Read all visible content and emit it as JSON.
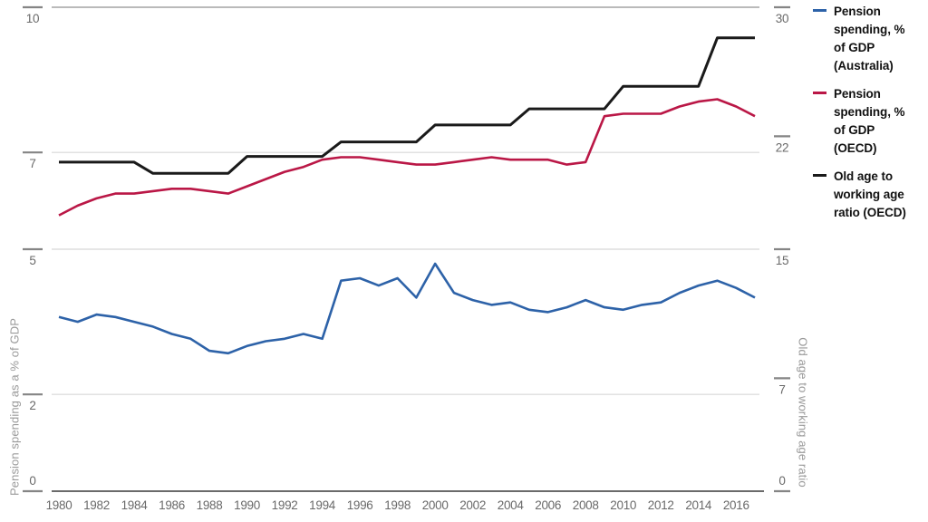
{
  "chart_data": {
    "type": "line",
    "grid": true,
    "legend_position": "right",
    "x": [
      1980,
      1981,
      1982,
      1983,
      1984,
      1985,
      1986,
      1987,
      1988,
      1989,
      1990,
      1991,
      1992,
      1993,
      1994,
      1995,
      1996,
      1997,
      1998,
      1999,
      2000,
      2001,
      2002,
      2003,
      2004,
      2005,
      2006,
      2007,
      2008,
      2009,
      2010,
      2011,
      2012,
      2013,
      2014,
      2015,
      2016,
      2017
    ],
    "series": [
      {
        "id": "australia",
        "name": "Pension spending, % of GDP (Australia)",
        "axis": "left",
        "color": "#2d62a8",
        "values": [
          3.6,
          3.5,
          3.65,
          3.6,
          3.5,
          3.4,
          3.25,
          3.15,
          2.9,
          2.85,
          3.0,
          3.1,
          3.15,
          3.25,
          3.15,
          4.35,
          4.4,
          4.25,
          4.4,
          4.0,
          4.7,
          4.1,
          3.95,
          3.85,
          3.9,
          3.75,
          3.7,
          3.8,
          3.95,
          3.8,
          3.75,
          3.85,
          3.9,
          4.1,
          4.25,
          4.35,
          4.2,
          4.0
        ]
      },
      {
        "id": "oecd",
        "name": "Pension spending, % of GDP (OECD)",
        "axis": "left",
        "color": "#ba1746",
        "values": [
          5.7,
          5.9,
          6.05,
          6.15,
          6.15,
          6.2,
          6.25,
          6.25,
          6.2,
          6.15,
          6.3,
          6.45,
          6.6,
          6.7,
          6.85,
          6.9,
          6.9,
          6.85,
          6.8,
          6.75,
          6.75,
          6.8,
          6.85,
          6.9,
          6.85,
          6.85,
          6.85,
          6.75,
          6.8,
          7.75,
          7.8,
          7.8,
          7.8,
          7.95,
          8.05,
          8.1,
          7.95,
          7.75
        ]
      },
      {
        "id": "ratio-oecd",
        "name": "Old age to working age ratio (OECD)",
        "axis": "right",
        "color": "#1a1a1a",
        "values": [
          20.4,
          20.4,
          20.4,
          20.4,
          20.4,
          19.7,
          19.7,
          19.7,
          19.7,
          19.7,
          20.75,
          20.75,
          20.75,
          20.75,
          20.75,
          21.65,
          21.65,
          21.65,
          21.65,
          21.65,
          22.7,
          22.7,
          22.7,
          22.7,
          22.7,
          23.7,
          23.7,
          23.7,
          23.7,
          23.7,
          25.1,
          25.1,
          25.1,
          25.1,
          25.1,
          28.1,
          28.1,
          28.1
        ]
      }
    ],
    "left_axis": {
      "title": "Pension spending as a % of GDP",
      "ticks": [
        0,
        2,
        5,
        7,
        10
      ],
      "range": [
        0,
        10
      ]
    },
    "right_axis": {
      "title": "Old age to working age ratio",
      "ticks": [
        0,
        7,
        15,
        22,
        30
      ],
      "range": [
        0,
        30
      ]
    },
    "x_axis": {
      "tick_years": [
        1980,
        1982,
        1984,
        1986,
        1988,
        1990,
        1992,
        1994,
        1996,
        1998,
        2000,
        2002,
        2004,
        2006,
        2008,
        2010,
        2012,
        2014,
        2016
      ]
    }
  }
}
